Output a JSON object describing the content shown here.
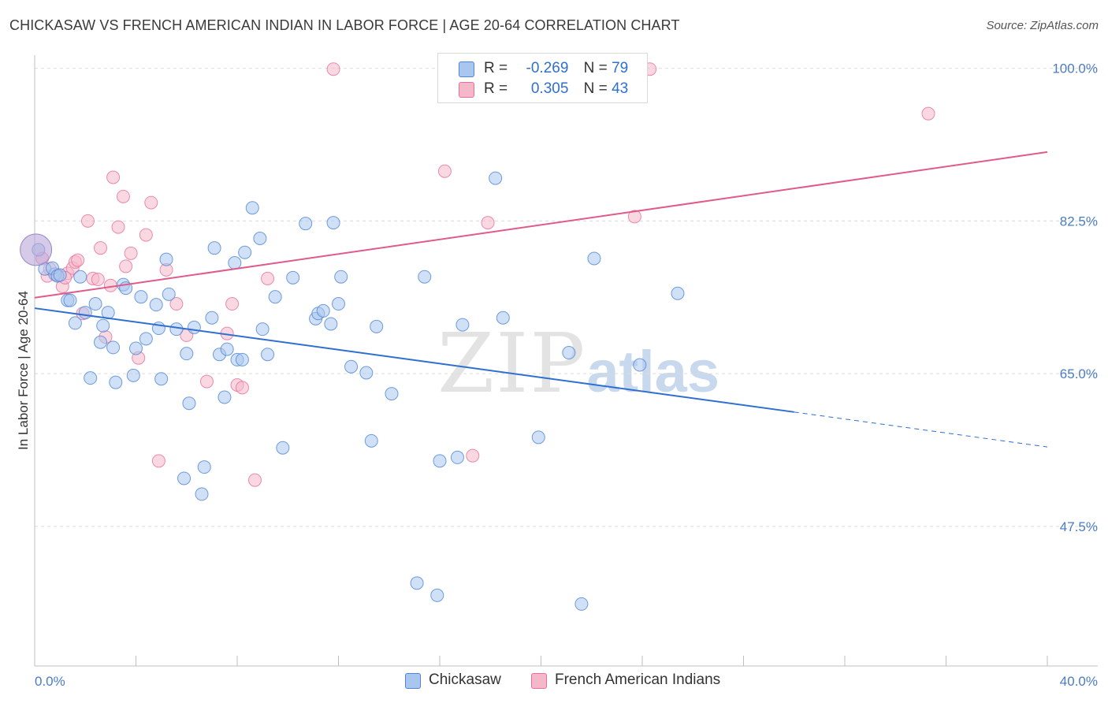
{
  "header": {
    "title": "CHICKASAW VS FRENCH AMERICAN INDIAN IN LABOR FORCE | AGE 20-64 CORRELATION CHART",
    "source": "Source: ZipAtlas.com"
  },
  "watermark": {
    "zip": "ZIP",
    "atlas": "atlas"
  },
  "legend_top": [
    {
      "r_label": "R =",
      "r_value": "-0.269",
      "n_label": "N =",
      "n_value": "79",
      "color": "#a9c7ee"
    },
    {
      "r_label": "R =",
      "r_value": "0.305",
      "n_label": "N =",
      "n_value": "43",
      "color": "#f5b8cb"
    }
  ],
  "legend_bottom": [
    {
      "label": "Chickasaw",
      "color": "#a9c7ee"
    },
    {
      "label": "French American Indians",
      "color": "#f5b8cb"
    }
  ],
  "chart_data": {
    "type": "scatter",
    "title": "CHICKASAW VS FRENCH AMERICAN INDIAN IN LABOR FORCE | AGE 20-64 CORRELATION CHART",
    "xlabel": "",
    "ylabel": "In Labor Force | Age 20-64",
    "xlim": [
      0,
      40
    ],
    "ylim": [
      31.5,
      101.5
    ],
    "x_tick_labels": [
      "0.0%",
      "40.0%"
    ],
    "y_ticks": [
      47.5,
      65.0,
      82.5,
      100.0
    ],
    "y_tick_labels": [
      "47.5%",
      "65.0%",
      "82.5%",
      "100.0%"
    ],
    "grid": "horizontal dashed",
    "legend_position": "top-center",
    "series": [
      {
        "name": "Chickasaw",
        "color": "#4f86d6",
        "fill": "#a9c7ee",
        "r": -0.269,
        "n": 79,
        "trend": {
          "x_start": 0,
          "y_start": 72.5,
          "x_solid_end": 30,
          "y_solid_end": 60.6,
          "x_end": 40,
          "y_end": 56.6
        },
        "points": [
          [
            0.4,
            77.0
          ],
          [
            0.8,
            76.4
          ],
          [
            0.7,
            77.1
          ],
          [
            0.9,
            76.2
          ],
          [
            1.3,
            73.4
          ],
          [
            1.4,
            73.4
          ],
          [
            1.6,
            70.8
          ],
          [
            1.8,
            76.1
          ],
          [
            2.0,
            72.0
          ],
          [
            2.2,
            64.5
          ],
          [
            2.4,
            73.0
          ],
          [
            2.6,
            68.6
          ],
          [
            2.7,
            70.5
          ],
          [
            2.9,
            72.0
          ],
          [
            3.1,
            68.0
          ],
          [
            3.2,
            64.0
          ],
          [
            3.5,
            75.2
          ],
          [
            3.6,
            74.8
          ],
          [
            3.9,
            64.8
          ],
          [
            4.0,
            67.9
          ],
          [
            4.2,
            73.8
          ],
          [
            4.4,
            69.0
          ],
          [
            4.8,
            72.9
          ],
          [
            4.9,
            70.2
          ],
          [
            5.0,
            64.4
          ],
          [
            5.2,
            78.1
          ],
          [
            5.3,
            74.1
          ],
          [
            5.6,
            70.1
          ],
          [
            6.0,
            67.3
          ],
          [
            6.1,
            61.6
          ],
          [
            6.3,
            70.3
          ],
          [
            5.9,
            53.0
          ],
          [
            6.6,
            51.2
          ],
          [
            6.7,
            54.3
          ],
          [
            7.0,
            71.4
          ],
          [
            7.1,
            79.4
          ],
          [
            7.3,
            67.2
          ],
          [
            7.5,
            62.3
          ],
          [
            7.6,
            67.8
          ],
          [
            7.9,
            77.7
          ],
          [
            8.0,
            66.6
          ],
          [
            8.2,
            66.6
          ],
          [
            8.3,
            78.9
          ],
          [
            8.6,
            84.0
          ],
          [
            8.9,
            80.5
          ],
          [
            9.0,
            70.1
          ],
          [
            9.2,
            67.2
          ],
          [
            9.5,
            73.8
          ],
          [
            9.8,
            56.5
          ],
          [
            10.2,
            76.0
          ],
          [
            10.7,
            82.2
          ],
          [
            11.1,
            71.3
          ],
          [
            11.2,
            71.9
          ],
          [
            11.4,
            72.2
          ],
          [
            11.7,
            70.7
          ],
          [
            11.8,
            82.3
          ],
          [
            12.0,
            73.0
          ],
          [
            12.1,
            76.1
          ],
          [
            12.5,
            65.8
          ],
          [
            13.1,
            65.1
          ],
          [
            13.3,
            57.3
          ],
          [
            13.5,
            70.4
          ],
          [
            14.1,
            62.7
          ],
          [
            15.1,
            41.0
          ],
          [
            15.4,
            76.1
          ],
          [
            15.9,
            39.6
          ],
          [
            16.0,
            55.0
          ],
          [
            16.7,
            55.4
          ],
          [
            16.9,
            70.6
          ],
          [
            18.2,
            87.4
          ],
          [
            18.5,
            71.4
          ],
          [
            19.9,
            57.7
          ],
          [
            21.1,
            67.4
          ],
          [
            21.6,
            38.6
          ],
          [
            22.1,
            78.2
          ],
          [
            23.9,
            66.0
          ],
          [
            25.4,
            74.2
          ],
          [
            0.15,
            79.2
          ],
          [
            1.0,
            76.3
          ]
        ]
      },
      {
        "name": "French American Indians",
        "color": "#e7709a",
        "fill": "#f5b8cb",
        "r": 0.305,
        "n": 43,
        "trend": {
          "x_start": 0,
          "y_start": 73.7,
          "x_end": 40,
          "y_end": 90.4
        },
        "points": [
          [
            0.3,
            78.2
          ],
          [
            0.5,
            76.2
          ],
          [
            0.9,
            76.3
          ],
          [
            1.1,
            75.0
          ],
          [
            1.3,
            76.5
          ],
          [
            1.5,
            77.1
          ],
          [
            1.6,
            77.8
          ],
          [
            1.7,
            78.0
          ],
          [
            1.9,
            71.9
          ],
          [
            2.1,
            82.5
          ],
          [
            2.3,
            75.9
          ],
          [
            2.5,
            75.8
          ],
          [
            2.6,
            79.4
          ],
          [
            2.8,
            69.2
          ],
          [
            3.0,
            75.1
          ],
          [
            3.1,
            87.5
          ],
          [
            3.3,
            81.8
          ],
          [
            3.5,
            85.3
          ],
          [
            3.6,
            77.3
          ],
          [
            3.8,
            78.8
          ],
          [
            4.1,
            66.8
          ],
          [
            4.4,
            80.9
          ],
          [
            4.6,
            84.6
          ],
          [
            4.9,
            55.0
          ],
          [
            5.2,
            76.9
          ],
          [
            5.6,
            73.0
          ],
          [
            6.0,
            69.4
          ],
          [
            6.8,
            64.1
          ],
          [
            7.6,
            69.6
          ],
          [
            7.8,
            73.0
          ],
          [
            8.0,
            63.7
          ],
          [
            8.2,
            63.4
          ],
          [
            8.7,
            52.8
          ],
          [
            9.2,
            75.9
          ],
          [
            11.8,
            99.9
          ],
          [
            16.2,
            88.2
          ],
          [
            17.3,
            55.6
          ],
          [
            17.9,
            82.3
          ],
          [
            23.7,
            83.0
          ],
          [
            24.3,
            99.9
          ],
          [
            35.3,
            94.8
          ],
          [
            0.6,
            77.0
          ],
          [
            1.2,
            76.0
          ]
        ]
      }
    ]
  }
}
